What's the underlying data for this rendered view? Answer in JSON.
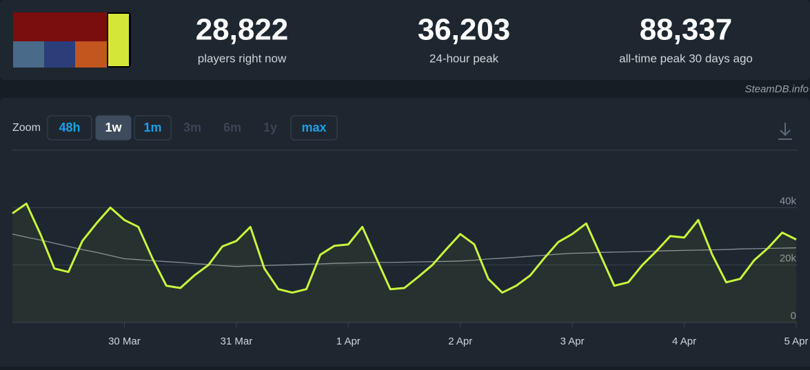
{
  "header": {
    "stats": [
      {
        "value": "28,822",
        "label": "players right now"
      },
      {
        "value": "36,203",
        "label": "24-hour peak"
      },
      {
        "value": "88,337",
        "label": "all-time peak 30 days ago"
      }
    ],
    "credit": "SteamDB.info"
  },
  "zoom": {
    "label": "Zoom",
    "buttons": [
      "48h",
      "1w",
      "1m",
      "3m",
      "6m",
      "1y",
      "max"
    ]
  },
  "chart_data": {
    "type": "line",
    "categories": [
      null,
      null,
      null,
      null,
      null,
      null,
      null,
      null,
      "30 Mar",
      null,
      null,
      null,
      null,
      null,
      null,
      null,
      "31 Mar",
      null,
      null,
      null,
      null,
      null,
      null,
      null,
      "1 Apr",
      null,
      null,
      null,
      null,
      null,
      null,
      null,
      "2 Apr",
      null,
      null,
      null,
      null,
      null,
      null,
      null,
      "3 Apr",
      null,
      null,
      null,
      null,
      null,
      null,
      null,
      "4 Apr",
      null,
      null,
      null,
      null,
      null,
      null,
      null,
      "5 Apr"
    ],
    "series": [
      {
        "color": "#c9f73a",
        "values": [
          38000,
          41400,
          30800,
          18800,
          17600,
          28400,
          34500,
          40000,
          35700,
          33300,
          22400,
          12800,
          12000,
          16400,
          20000,
          26500,
          28400,
          33300,
          18800,
          11600,
          10400,
          11600,
          23600,
          26700,
          27200,
          33300,
          22400,
          11600,
          12000,
          15900,
          20000,
          25500,
          30800,
          27200,
          15200,
          10400,
          12800,
          16400,
          22400,
          28000,
          30800,
          34500,
          23600,
          12800,
          14000,
          20000,
          24800,
          30100,
          29600,
          35700,
          23600,
          14000,
          15200,
          21700,
          26000,
          31300,
          28900
        ]
      },
      {
        "color": "#8a8f96",
        "values": [
          30800,
          29700,
          28700,
          27600,
          26500,
          25400,
          24400,
          23300,
          22200,
          21900,
          21500,
          21200,
          20900,
          20500,
          20200,
          19800,
          19500,
          19700,
          19800,
          20000,
          20100,
          20300,
          20400,
          20600,
          20700,
          20800,
          20900,
          20900,
          21000,
          21100,
          21200,
          21300,
          21400,
          21700,
          22100,
          22400,
          22700,
          23100,
          23400,
          23800,
          24100,
          24200,
          24400,
          24500,
          24600,
          24700,
          24900,
          25000,
          25100,
          25200,
          25300,
          25400,
          25600,
          25700,
          25800,
          25900,
          26000
        ]
      }
    ],
    "ylim": [
      0,
      60000
    ],
    "yticks": [
      0,
      {
        "value": 20000,
        "label": "20k"
      },
      {
        "value": 40000,
        "label": "40k"
      }
    ],
    "grid": true
  }
}
